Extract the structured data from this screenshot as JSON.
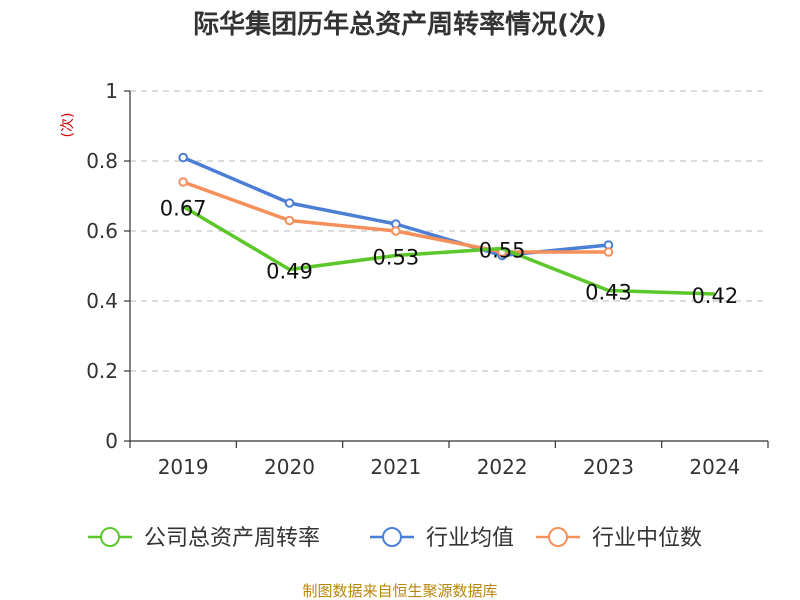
{
  "chart_data": {
    "type": "line",
    "title": "际华集团历年总资产周转率情况(次)",
    "ylabel": "(次)",
    "xlabel": "",
    "categories": [
      "2019",
      "2020",
      "2021",
      "2022",
      "2023",
      "2024"
    ],
    "ylim": [
      0,
      1
    ],
    "yticks": [
      "0",
      "0.2",
      "0.4",
      "0.6",
      "0.8",
      "1"
    ],
    "grid": true,
    "legend_position": "bottom",
    "series": [
      {
        "name": "公司总资产周转率",
        "color": "#5cc72b",
        "values": [
          0.67,
          0.49,
          0.53,
          0.55,
          0.43,
          0.42
        ],
        "labels": [
          "0.67",
          "0.49",
          "0.53",
          "0.55",
          "0.43",
          "0.42"
        ]
      },
      {
        "name": "行业均值",
        "color": "#4b7fd6",
        "values": [
          0.81,
          0.68,
          0.62,
          0.53,
          0.56,
          null
        ]
      },
      {
        "name": "行业中位数",
        "color": "#f5905a",
        "values": [
          0.74,
          0.63,
          0.6,
          0.54,
          0.54,
          null
        ]
      }
    ]
  },
  "footer": {
    "source": "制图数据来自恒生聚源数据库"
  }
}
